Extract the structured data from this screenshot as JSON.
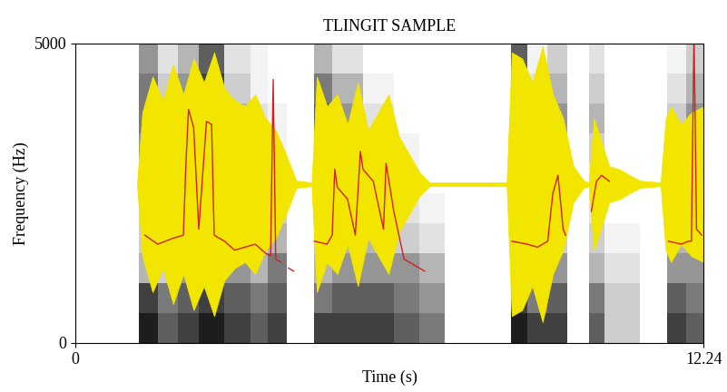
{
  "chart_data": {
    "type": "spectrogram",
    "title": "TLINGIT SAMPLE",
    "x_label": "Time (s)",
    "y_label": "Frequency (Hz)",
    "xlim": [
      0,
      12.24
    ],
    "ylim": [
      0,
      5000
    ],
    "xticks": [
      0,
      12.24
    ],
    "yticks": [
      0,
      5000
    ],
    "grid": false,
    "spectrogram": {
      "segments": [
        {
          "start": 1.24,
          "end": 1.6,
          "energy": [
            0.9,
            0.8,
            0.4,
            0.3,
            0.3,
            0.4,
            0.5,
            0.6,
            0.6,
            0.5
          ]
        },
        {
          "start": 1.6,
          "end": 2.0,
          "energy": [
            0.7,
            0.6,
            0.3,
            0.2,
            0.2,
            0.3,
            0.3,
            0.4,
            0.3,
            0.2
          ]
        },
        {
          "start": 2.0,
          "end": 2.4,
          "energy": [
            0.8,
            0.7,
            0.5,
            0.4,
            0.5,
            0.6,
            0.7,
            0.6,
            0.5,
            0.4
          ]
        },
        {
          "start": 2.4,
          "end": 2.9,
          "energy": [
            0.9,
            0.8,
            0.6,
            0.5,
            0.5,
            0.6,
            0.7,
            0.8,
            0.8,
            0.7
          ]
        },
        {
          "start": 2.9,
          "end": 3.4,
          "energy": [
            0.8,
            0.7,
            0.5,
            0.3,
            0.3,
            0.3,
            0.4,
            0.4,
            0.3,
            0.2
          ]
        },
        {
          "start": 3.4,
          "end": 3.75,
          "energy": [
            0.7,
            0.6,
            0.4,
            0.3,
            0.3,
            0.2,
            0.2,
            0.2,
            0.1,
            0.1
          ]
        },
        {
          "start": 3.75,
          "end": 4.11,
          "energy": [
            0.8,
            0.7,
            0.6,
            0.4,
            0.3,
            0.2,
            0.1,
            0.1,
            0.0,
            0.0
          ]
        },
        {
          "start": 4.64,
          "end": 5.0,
          "energy": [
            0.8,
            0.6,
            0.4,
            0.3,
            0.3,
            0.3,
            0.5,
            0.7,
            0.6,
            0.4
          ]
        },
        {
          "start": 5.0,
          "end": 5.6,
          "energy": [
            0.8,
            0.7,
            0.5,
            0.4,
            0.4,
            0.4,
            0.5,
            0.5,
            0.4,
            0.2
          ]
        },
        {
          "start": 5.6,
          "end": 6.2,
          "energy": [
            0.8,
            0.7,
            0.5,
            0.4,
            0.3,
            0.3,
            0.3,
            0.2,
            0.1,
            0.0
          ]
        },
        {
          "start": 6.2,
          "end": 6.7,
          "energy": [
            0.7,
            0.6,
            0.5,
            0.3,
            0.2,
            0.1,
            0.1,
            0.0,
            0.0,
            0.0
          ]
        },
        {
          "start": 6.7,
          "end": 7.2,
          "energy": [
            0.6,
            0.5,
            0.4,
            0.2,
            0.1,
            0.0,
            0.0,
            0.0,
            0.0,
            0.0
          ]
        },
        {
          "start": 8.49,
          "end": 8.8,
          "energy": [
            0.9,
            0.8,
            0.6,
            0.5,
            0.5,
            0.6,
            0.7,
            0.8,
            0.8,
            0.7
          ]
        },
        {
          "start": 8.8,
          "end": 9.2,
          "energy": [
            0.8,
            0.6,
            0.4,
            0.3,
            0.3,
            0.3,
            0.4,
            0.3,
            0.2,
            0.1
          ]
        },
        {
          "start": 9.2,
          "end": 9.58,
          "energy": [
            0.8,
            0.7,
            0.5,
            0.3,
            0.3,
            0.4,
            0.5,
            0.5,
            0.4,
            0.3
          ]
        },
        {
          "start": 10.0,
          "end": 10.3,
          "energy": [
            0.7,
            0.6,
            0.4,
            0.3,
            0.2,
            0.2,
            0.3,
            0.4,
            0.3,
            0.2
          ]
        },
        {
          "start": 10.3,
          "end": 11.0,
          "energy": [
            0.3,
            0.3,
            0.2,
            0.1,
            0.0,
            0.0,
            0.0,
            0.0,
            0.0,
            0.0
          ]
        },
        {
          "start": 11.53,
          "end": 11.9,
          "energy": [
            0.8,
            0.7,
            0.5,
            0.4,
            0.4,
            0.4,
            0.4,
            0.3,
            0.2,
            0.1
          ]
        },
        {
          "start": 11.9,
          "end": 12.24,
          "energy": [
            0.7,
            0.6,
            0.5,
            0.4,
            0.4,
            0.5,
            0.6,
            0.5,
            0.4,
            0.3
          ]
        }
      ]
    },
    "waveform": {
      "color": "#f2e600",
      "baseline": 2650,
      "x": [
        1.2,
        1.3,
        1.5,
        1.7,
        1.9,
        2.1,
        2.3,
        2.5,
        2.7,
        2.9,
        3.1,
        3.3,
        3.5,
        3.7,
        3.9,
        4.1,
        4.3,
        4.6,
        4.7,
        4.9,
        5.1,
        5.3,
        5.5,
        5.7,
        5.9,
        6.1,
        6.3,
        6.5,
        6.7,
        6.9,
        8.4,
        8.5,
        8.7,
        8.9,
        9.1,
        9.3,
        9.5,
        9.7,
        9.9,
        10.0,
        10.1,
        10.25,
        10.4,
        10.6,
        10.8,
        11.0,
        11.4,
        11.5,
        11.6,
        11.8,
        12.0,
        12.24
      ],
      "amplitude": [
        30,
        1200,
        1800,
        1400,
        2000,
        1500,
        2100,
        1700,
        2200,
        1600,
        1400,
        1300,
        1500,
        1100,
        900,
        500,
        60,
        30,
        1800,
        1300,
        1500,
        1000,
        1700,
        900,
        1200,
        1500,
        800,
        500,
        200,
        30,
        30,
        2200,
        2100,
        1700,
        2300,
        1500,
        1100,
        300,
        60,
        30,
        1100,
        700,
        300,
        250,
        150,
        60,
        30,
        1100,
        1300,
        1000,
        1200,
        1300
      ]
    },
    "pitch": {
      "color": "#d42020",
      "x": [
        1.35,
        1.6,
        1.9,
        2.1,
        2.15,
        2.2,
        2.3,
        2.4,
        2.55,
        2.65,
        2.7,
        2.9,
        3.1,
        3.3,
        3.5,
        3.7,
        3.8,
        3.85,
        3.9,
        4.0,
        null,
        4.15,
        4.25,
        null,
        4.65,
        4.9,
        5.0,
        5.05,
        5.1,
        5.3,
        5.45,
        5.55,
        5.6,
        5.8,
        6.0,
        6.05,
        6.2,
        6.4,
        6.6,
        6.8,
        null,
        8.5,
        8.8,
        9.0,
        9.2,
        9.3,
        9.4,
        9.5,
        9.55,
        null,
        10.05,
        10.15,
        10.25,
        10.4,
        null,
        11.55,
        11.8,
        11.95,
        12.0,
        12.05,
        12.1,
        12.2
      ],
      "values": [
        1800,
        1650,
        1750,
        1800,
        3000,
        3900,
        3600,
        1900,
        3700,
        3650,
        1800,
        1700,
        1550,
        1600,
        1650,
        1500,
        1450,
        4400,
        1400,
        1350,
        null,
        1250,
        1200,
        null,
        1700,
        1650,
        1800,
        2900,
        2600,
        2400,
        1800,
        3200,
        2900,
        2700,
        1900,
        3000,
        2200,
        1400,
        1300,
        1200,
        null,
        1700,
        1650,
        1600,
        1700,
        2500,
        2800,
        1900,
        1800,
        null,
        2200,
        2700,
        2800,
        2700,
        null,
        1700,
        1650,
        1700,
        1700,
        5200,
        1900,
        1800
      ]
    }
  }
}
